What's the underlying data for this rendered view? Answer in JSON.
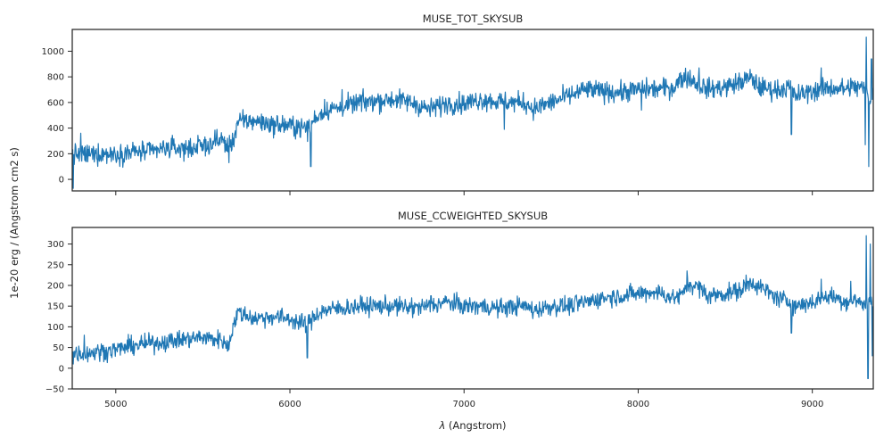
{
  "figure": {
    "ylabel": "1e-20 erg / (Angstrom cm2 s)",
    "xlabel_prefix": "λ",
    "xlabel_suffix": " (Angstrom)",
    "series_color": "#1f77b4"
  },
  "chart_data": [
    {
      "type": "line",
      "title": "MUSE_TOT_SKYSUB",
      "xlim": [
        4750,
        9350
      ],
      "ylim": [
        -90,
        1170
      ],
      "yticks": [
        0,
        200,
        400,
        600,
        800,
        1000
      ],
      "xticks": [
        5000,
        6000,
        7000,
        8000,
        9000
      ],
      "show_xticklabels": false,
      "grid": false,
      "series": [
        {
          "color": "#1f77b4",
          "noise": 40,
          "x": [
            4750,
            4800,
            4900,
            5000,
            5100,
            5200,
            5300,
            5400,
            5500,
            5560,
            5610,
            5640,
            5670,
            5700,
            5800,
            5900,
            6000,
            6050,
            6100,
            6150,
            6200,
            6300,
            6400,
            6500,
            6600,
            6700,
            6800,
            6900,
            7000,
            7100,
            7200,
            7300,
            7350,
            7400,
            7500,
            7600,
            7700,
            7800,
            7900,
            8000,
            8100,
            8200,
            8250,
            8280,
            8350,
            8400,
            8500,
            8600,
            8650,
            8700,
            8800,
            8870,
            8900,
            9000,
            9100,
            9200,
            9260,
            9300,
            9330,
            9350
          ],
          "y": [
            200,
            190,
            200,
            200,
            215,
            215,
            245,
            240,
            260,
            275,
            310,
            260,
            290,
            445,
            460,
            425,
            420,
            410,
            395,
            485,
            540,
            560,
            600,
            615,
            625,
            600,
            545,
            595,
            590,
            625,
            605,
            600,
            600,
            550,
            600,
            650,
            700,
            685,
            680,
            700,
            705,
            715,
            790,
            800,
            740,
            705,
            720,
            765,
            790,
            715,
            700,
            720,
            650,
            690,
            715,
            705,
            720,
            705,
            600,
            690
          ]
        }
      ],
      "spikes": [
        [
          4755,
          -70
        ],
        [
          4800,
          360
        ],
        [
          5580,
          390
        ],
        [
          5650,
          130
        ],
        [
          6120,
          100
        ],
        [
          6300,
          700
        ],
        [
          7230,
          390
        ],
        [
          8020,
          540
        ],
        [
          8350,
          870
        ],
        [
          8620,
          830
        ],
        [
          8880,
          350
        ],
        [
          9050,
          870
        ],
        [
          9220,
          790
        ],
        [
          9305,
          270
        ],
        [
          9310,
          1110
        ],
        [
          9325,
          100
        ],
        [
          9340,
          940
        ]
      ]
    },
    {
      "type": "line",
      "title": "MUSE_CCWEIGHTED_SKYSUB",
      "xlim": [
        4750,
        9350
      ],
      "ylim": [
        -50,
        340
      ],
      "yticks": [
        -50,
        0,
        50,
        100,
        150,
        200,
        250,
        300
      ],
      "xticks": [
        5000,
        6000,
        7000,
        8000,
        9000
      ],
      "xticklabels": [
        "5000",
        "6000",
        "7000",
        "8000",
        "9000"
      ],
      "show_xticklabels": true,
      "grid": false,
      "series": [
        {
          "color": "#1f77b4",
          "noise": 11,
          "x": [
            4750,
            4800,
            4900,
            5000,
            5100,
            5200,
            5300,
            5400,
            5500,
            5560,
            5610,
            5640,
            5670,
            5700,
            5800,
            5900,
            6000,
            6050,
            6100,
            6150,
            6200,
            6300,
            6400,
            6500,
            6600,
            6700,
            6800,
            6900,
            7000,
            7100,
            7200,
            7300,
            7350,
            7400,
            7500,
            7600,
            7700,
            7800,
            7900,
            8000,
            8100,
            8200,
            8250,
            8280,
            8350,
            8400,
            8500,
            8600,
            8650,
            8700,
            8800,
            8870,
            8900,
            9000,
            9100,
            9200,
            9260,
            9300,
            9330,
            9350
          ],
          "y": [
            40,
            35,
            40,
            45,
            55,
            60,
            65,
            70,
            75,
            70,
            70,
            50,
            95,
            135,
            120,
            125,
            120,
            110,
            105,
            130,
            140,
            145,
            150,
            150,
            150,
            145,
            150,
            160,
            150,
            150,
            145,
            150,
            150,
            140,
            150,
            150,
            160,
            170,
            175,
            180,
            185,
            170,
            175,
            205,
            195,
            175,
            180,
            190,
            210,
            195,
            170,
            160,
            150,
            160,
            175,
            160,
            165,
            150,
            175,
            140
          ]
        }
      ],
      "spikes": [
        [
          4755,
          10
        ],
        [
          4820,
          80
        ],
        [
          5650,
          45
        ],
        [
          6100,
          25
        ],
        [
          6700,
          170
        ],
        [
          6810,
          175
        ],
        [
          8280,
          235
        ],
        [
          8620,
          225
        ],
        [
          8880,
          85
        ],
        [
          9050,
          215
        ],
        [
          9220,
          210
        ],
        [
          9310,
          320
        ],
        [
          9320,
          -25
        ],
        [
          9332,
          300
        ],
        [
          9345,
          30
        ]
      ]
    }
  ]
}
